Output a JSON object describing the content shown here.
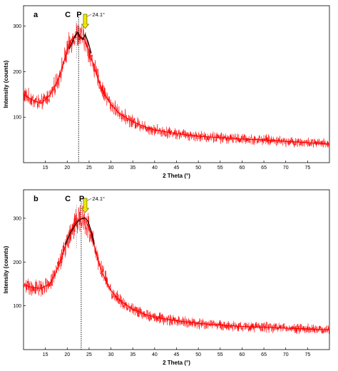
{
  "chart_data": [
    {
      "type": "line",
      "panel_label": "a",
      "xlabel": "2 Theta (°)",
      "ylabel": "Intensity (counts)",
      "xlim": [
        10,
        80
      ],
      "ylim": [
        0,
        345
      ],
      "xticks": [
        15,
        20,
        25,
        30,
        35,
        40,
        45,
        50,
        55,
        60,
        65,
        70,
        75
      ],
      "yticks": [
        100,
        200,
        300
      ],
      "grid": false,
      "series": [
        {
          "color": "#ff0000",
          "x": [
            10,
            12,
            14,
            16,
            17,
            18,
            19,
            20,
            21,
            22,
            23,
            24,
            25,
            26,
            27,
            28,
            30,
            32,
            35,
            38,
            40,
            45,
            50,
            55,
            60,
            65,
            70,
            75,
            80
          ],
          "y": [
            150,
            138,
            130,
            148,
            165,
            185,
            215,
            245,
            270,
            283,
            278,
            270,
            245,
            215,
            185,
            160,
            128,
            108,
            90,
            78,
            72,
            64,
            58,
            55,
            52,
            50,
            47,
            44,
            41
          ]
        },
        {
          "name_hidden": "fit",
          "color": "#000000",
          "x": [
            20.5,
            21.5,
            22.3,
            23.0,
            23.6,
            24.1,
            24.8,
            25.5
          ],
          "y": [
            250,
            272,
            287,
            275,
            271,
            282,
            265,
            240
          ]
        }
      ],
      "peaks": {
        "c": "C",
        "p": "P",
        "angle": "24.1°",
        "c_x": 22.1,
        "p_x": 22.6,
        "arrow_x": 24.1
      }
    },
    {
      "type": "line",
      "panel_label": "b",
      "xlabel": "2 Theta (°)",
      "ylabel": "Intensity (counts)",
      "xlim": [
        10,
        80
      ],
      "ylim": [
        0,
        365
      ],
      "xticks": [
        15,
        20,
        25,
        30,
        35,
        40,
        45,
        50,
        55,
        60,
        65,
        70,
        75
      ],
      "yticks": [
        100,
        200,
        300
      ],
      "grid": false,
      "series": [
        {
          "color": "#ff0000",
          "x": [
            10,
            12,
            14,
            16,
            17,
            18,
            19,
            20,
            21,
            22,
            23,
            24,
            25,
            26,
            27,
            28,
            30,
            32,
            35,
            38,
            40,
            45,
            50,
            55,
            60,
            65,
            70,
            75,
            80
          ],
          "y": [
            148,
            142,
            140,
            150,
            168,
            190,
            218,
            250,
            275,
            292,
            300,
            298,
            278,
            245,
            205,
            175,
            135,
            112,
            92,
            80,
            74,
            66,
            60,
            56,
            53,
            51,
            49,
            47,
            45
          ]
        },
        {
          "name_hidden": "fit",
          "color": "#000000",
          "x": [
            19.5,
            20.5,
            21.5,
            22.5,
            23.5,
            24.1,
            24.8,
            25.5,
            26.2
          ],
          "y": [
            240,
            262,
            280,
            293,
            300,
            301,
            292,
            270,
            240
          ]
        }
      ],
      "peaks": {
        "c": "C",
        "p": "P",
        "angle": "24.1°",
        "c_x": 22.1,
        "p_x": 23.2,
        "arrow_x": 24.1
      }
    }
  ]
}
